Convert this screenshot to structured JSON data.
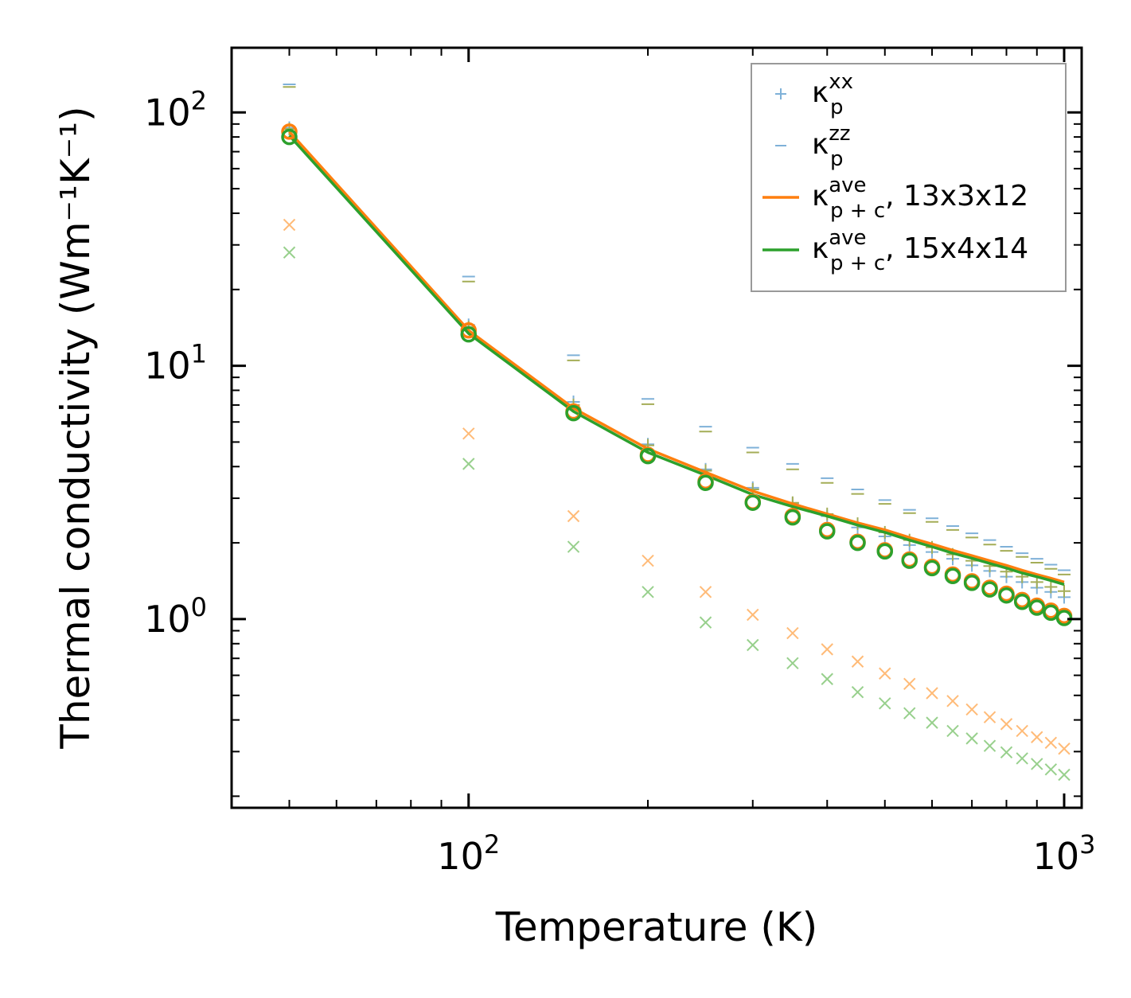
{
  "chart_data": {
    "type": "line",
    "xscale": "log",
    "yscale": "log",
    "xlabel": "Temperature (K)",
    "ylabel": "Thermal conductivity (Wm⁻¹K⁻¹)",
    "xlim": [
      40,
      1070
    ],
    "ylim": [
      0.18,
      180
    ],
    "xticks": [
      {
        "value": 100,
        "base": "10",
        "exp": "2"
      },
      {
        "value": 1000,
        "base": "10",
        "exp": "3"
      }
    ],
    "yticks": [
      {
        "value": 1,
        "base": "10",
        "exp": "0"
      },
      {
        "value": 10,
        "base": "10",
        "exp": "1"
      },
      {
        "value": 100,
        "base": "10",
        "exp": "2"
      }
    ],
    "x": [
      50,
      100,
      150,
      200,
      250,
      300,
      350,
      400,
      450,
      500,
      550,
      600,
      650,
      700,
      750,
      800,
      850,
      900,
      950,
      1000
    ],
    "legend_location": "top-right",
    "legend": [
      {
        "label": "κ",
        "sub": "p",
        "sup": "xx",
        "suffix": "",
        "marker": "plus",
        "color": "#7fb1d8"
      },
      {
        "label": "κ",
        "sub": "p",
        "sup": "zz",
        "suffix": "",
        "marker": "hline",
        "color": "#7fb1d8"
      },
      {
        "label": "κ",
        "sub": "p + c",
        "sup": "ave",
        "suffix": ", 13x3x12",
        "marker": "line",
        "color": "#ff7f0e"
      },
      {
        "label": "κ",
        "sub": "p + c",
        "sup": "ave",
        "suffix": ", 15x4x14",
        "marker": "line",
        "color": "#2ca02c"
      }
    ],
    "series": [
      {
        "name": "κ_p+c^ave, 13x3x12 (line)",
        "color": "#ff7f0e",
        "style": "line",
        "values": [
          84,
          13.8,
          6.8,
          4.7,
          3.8,
          3.2,
          2.85,
          2.6,
          2.4,
          2.25,
          2.1,
          1.98,
          1.87,
          1.78,
          1.7,
          1.63,
          1.56,
          1.5,
          1.45,
          1.4
        ]
      },
      {
        "name": "κ_p+c^ave, 15x4x14 (line)",
        "color": "#2ca02c",
        "style": "line",
        "values": [
          81,
          13.4,
          6.6,
          4.55,
          3.7,
          3.1,
          2.78,
          2.55,
          2.35,
          2.2,
          2.05,
          1.93,
          1.82,
          1.74,
          1.66,
          1.59,
          1.52,
          1.47,
          1.42,
          1.37
        ]
      },
      {
        "name": "circles 13x3x12",
        "color": "#ff7f0e",
        "style": "circle",
        "values": [
          84,
          13.8,
          6.6,
          4.45,
          3.5,
          2.9,
          2.55,
          2.25,
          2.02,
          1.87,
          1.72,
          1.61,
          1.5,
          1.41,
          1.33,
          1.26,
          1.19,
          1.13,
          1.08,
          1.03
        ]
      },
      {
        "name": "circles 15x4x14",
        "color": "#2ca02c",
        "style": "circle",
        "values": [
          80,
          13.3,
          6.5,
          4.4,
          3.45,
          2.88,
          2.52,
          2.22,
          2.0,
          1.85,
          1.7,
          1.59,
          1.48,
          1.39,
          1.31,
          1.24,
          1.17,
          1.11,
          1.06,
          1.01
        ]
      },
      {
        "name": "κ_p^xx 13x3x12",
        "color": "#7fb1d8",
        "style": "plus",
        "values": [
          87,
          14.5,
          7.2,
          4.9,
          3.9,
          3.3,
          2.85,
          2.55,
          2.3,
          2.12,
          1.96,
          1.84,
          1.73,
          1.63,
          1.55,
          1.47,
          1.4,
          1.33,
          1.28,
          1.22
        ]
      },
      {
        "name": "κ_p^xx 15x4x14",
        "color": "#a4ad57",
        "style": "plus",
        "values": [
          86,
          14.2,
          7.0,
          4.85,
          3.85,
          3.25,
          2.88,
          2.6,
          2.38,
          2.2,
          2.05,
          1.92,
          1.8,
          1.7,
          1.62,
          1.54,
          1.47,
          1.4,
          1.34,
          1.29
        ]
      },
      {
        "name": "κ_p^zz 13x3x12",
        "color": "#7fb1d8",
        "style": "hline",
        "values": [
          129,
          22.5,
          11.0,
          7.4,
          5.75,
          4.75,
          4.1,
          3.6,
          3.25,
          2.95,
          2.7,
          2.5,
          2.33,
          2.18,
          2.05,
          1.93,
          1.82,
          1.73,
          1.64,
          1.56
        ]
      },
      {
        "name": "κ_p^zz 15x4x14",
        "color": "#a4ad57",
        "style": "hline",
        "values": [
          126,
          21.5,
          10.5,
          7.05,
          5.5,
          4.55,
          3.9,
          3.45,
          3.12,
          2.85,
          2.62,
          2.42,
          2.25,
          2.1,
          1.97,
          1.86,
          1.76,
          1.67,
          1.58,
          1.5
        ]
      },
      {
        "name": "cross 13x3x12",
        "color": "#ffbb78",
        "style": "cross",
        "values": [
          36,
          5.4,
          2.55,
          1.7,
          1.28,
          1.04,
          0.88,
          0.76,
          0.68,
          0.61,
          0.555,
          0.51,
          0.475,
          0.44,
          0.41,
          0.385,
          0.362,
          0.342,
          0.325,
          0.308
        ]
      },
      {
        "name": "cross 15x4x14",
        "color": "#98d08d",
        "style": "cross",
        "values": [
          28,
          4.1,
          1.93,
          1.28,
          0.97,
          0.79,
          0.67,
          0.58,
          0.515,
          0.465,
          0.425,
          0.39,
          0.362,
          0.338,
          0.316,
          0.298,
          0.282,
          0.268,
          0.255,
          0.243
        ]
      }
    ]
  }
}
